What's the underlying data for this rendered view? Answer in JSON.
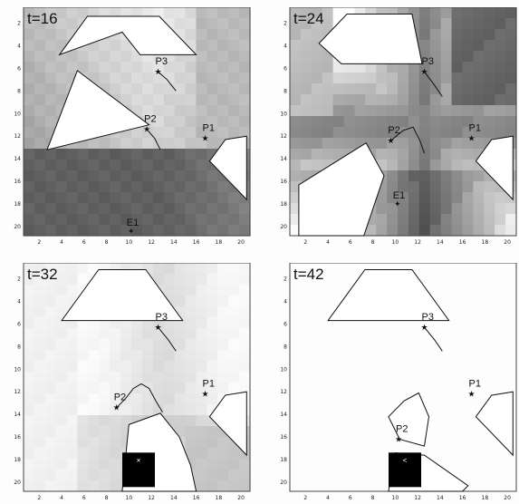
{
  "panels": [
    {
      "time_label": "t=16",
      "shading": "dark-bottom",
      "pursuers": [
        {
          "label": "P1",
          "x": 16.8,
          "y": 12.2,
          "trail": []
        },
        {
          "label": "P2",
          "x": 11.6,
          "y": 11.4,
          "trail": [
            [
              11.6,
              11.4
            ],
            [
              12.3,
              12.2
            ],
            [
              12.8,
              13.2
            ]
          ]
        },
        {
          "label": "P3",
          "x": 12.6,
          "y": 6.3,
          "trail": [
            [
              12.6,
              6.3
            ],
            [
              13.4,
              7.0
            ],
            [
              14.2,
              8.0
            ]
          ]
        }
      ],
      "evader": {
        "label": "E1",
        "x": 10.2,
        "y": 20.4
      },
      "obstacles": [
        [
          [
            6.3,
            1.4
          ],
          [
            12.7,
            1.4
          ],
          [
            16.0,
            4.8
          ],
          [
            11.0,
            4.8
          ],
          [
            9.4,
            2.8
          ],
          [
            3.8,
            4.8
          ]
        ],
        [
          [
            5.4,
            6.2
          ],
          [
            11.8,
            11.0
          ],
          [
            2.7,
            13.2
          ]
        ],
        [
          [
            18.6,
            12.3
          ],
          [
            20.5,
            12.0
          ],
          [
            20.5,
            17.6
          ],
          [
            17.2,
            14.2
          ]
        ]
      ],
      "goal": null
    },
    {
      "time_label": "t=24",
      "shading": "dark-cross",
      "pursuers": [
        {
          "label": "P1",
          "x": 16.8,
          "y": 12.2,
          "trail": []
        },
        {
          "label": "P2",
          "x": 9.6,
          "y": 12.4,
          "trail": [
            [
              9.6,
              12.4
            ],
            [
              10.7,
              11.5
            ],
            [
              11.6,
              11.2
            ],
            [
              12.2,
              12.4
            ],
            [
              12.6,
              13.5
            ]
          ]
        },
        {
          "label": "P3",
          "x": 12.6,
          "y": 6.3,
          "trail": [
            [
              12.6,
              6.3
            ],
            [
              13.5,
              7.5
            ],
            [
              14.2,
              8.5
            ]
          ]
        }
      ],
      "evader": {
        "label": "E1",
        "x": 10.2,
        "y": 18.0
      },
      "obstacles": [
        [
          [
            5.7,
            1.2
          ],
          [
            11.5,
            1.2
          ],
          [
            12.4,
            5.6
          ],
          [
            5.2,
            5.6
          ],
          [
            3.2,
            3.8
          ]
        ],
        [
          [
            1.4,
            16.3
          ],
          [
            7.4,
            12.6
          ],
          [
            9.0,
            15.5
          ],
          [
            7.2,
            20.8
          ],
          [
            1.4,
            20.8
          ]
        ],
        [
          [
            18.6,
            12.3
          ],
          [
            20.5,
            12.0
          ],
          [
            20.5,
            17.6
          ],
          [
            17.2,
            14.2
          ]
        ]
      ],
      "goal": null
    },
    {
      "time_label": "t=32",
      "shading": "light",
      "pursuers": [
        {
          "label": "P1",
          "x": 16.8,
          "y": 12.2,
          "trail": []
        },
        {
          "label": "P2",
          "x": 8.9,
          "y": 13.4,
          "trail": [
            [
              8.9,
              13.4
            ],
            [
              9.7,
              12.6
            ],
            [
              10.4,
              11.7
            ],
            [
              11.1,
              11.3
            ],
            [
              11.8,
              11.7
            ],
            [
              12.4,
              12.8
            ],
            [
              13.0,
              13.8
            ]
          ]
        },
        {
          "label": "P3",
          "x": 12.6,
          "y": 6.3,
          "trail": [
            [
              12.6,
              6.3
            ],
            [
              13.5,
              7.4
            ],
            [
              14.2,
              8.4
            ]
          ]
        }
      ],
      "evader": null,
      "obstacles": [
        [
          [
            7.3,
            1.2
          ],
          [
            11.5,
            1.2
          ],
          [
            14.8,
            5.7
          ],
          [
            4.0,
            5.7
          ]
        ],
        [
          [
            10.0,
            14.9
          ],
          [
            12.8,
            13.9
          ],
          [
            14.5,
            16.0
          ],
          [
            15.5,
            18.5
          ],
          [
            16.0,
            20.8
          ],
          [
            9.4,
            20.8
          ]
        ],
        [
          [
            18.6,
            12.3
          ],
          [
            20.5,
            12.0
          ],
          [
            20.5,
            17.6
          ],
          [
            17.2,
            14.2
          ]
        ]
      ],
      "goal": {
        "x": 10.7,
        "y": 18.9,
        "mark": "×"
      }
    },
    {
      "time_label": "t=42",
      "shading": "white",
      "pursuers": [
        {
          "label": "P1",
          "x": 16.8,
          "y": 12.2,
          "trail": []
        },
        {
          "label": "P2",
          "x": 10.3,
          "y": 16.2,
          "trail": []
        },
        {
          "label": "P3",
          "x": 12.6,
          "y": 6.3,
          "trail": [
            [
              12.6,
              6.3
            ],
            [
              13.5,
              7.4
            ],
            [
              14.2,
              8.4
            ]
          ]
        }
      ],
      "evader": null,
      "obstacles": [
        [
          [
            7.3,
            1.2
          ],
          [
            11.5,
            1.2
          ],
          [
            14.8,
            5.7
          ],
          [
            4.0,
            5.7
          ]
        ],
        [
          [
            9.4,
            14.2
          ],
          [
            10.8,
            12.8
          ],
          [
            12.1,
            12.1
          ],
          [
            13.0,
            14.2
          ],
          [
            12.6,
            16.8
          ],
          [
            10.4,
            16.2
          ]
        ],
        [
          [
            10.0,
            17.4
          ],
          [
            12.6,
            17.6
          ],
          [
            16.5,
            20.3
          ],
          [
            16.0,
            20.8
          ],
          [
            9.4,
            20.8
          ]
        ],
        [
          [
            18.6,
            12.3
          ],
          [
            20.5,
            12.0
          ],
          [
            20.5,
            17.6
          ],
          [
            17.2,
            14.2
          ]
        ]
      ],
      "goal": {
        "x": 10.7,
        "y": 18.9,
        "mark": "<"
      }
    }
  ],
  "axes": {
    "x_ticks": [
      "2",
      "4",
      "6",
      "8",
      "10",
      "12",
      "14",
      "16",
      "18",
      "20"
    ],
    "y_ticks": [
      "2",
      "4",
      "6",
      "8",
      "10",
      "12",
      "14",
      "16",
      "18",
      "20"
    ]
  },
  "colors": {
    "obstacle_fill": "#ffffff",
    "outline": "#111111",
    "goal_fill": "#000000",
    "dark_cell": "#3a3a3a",
    "light_cell": "#f2f2f2"
  }
}
